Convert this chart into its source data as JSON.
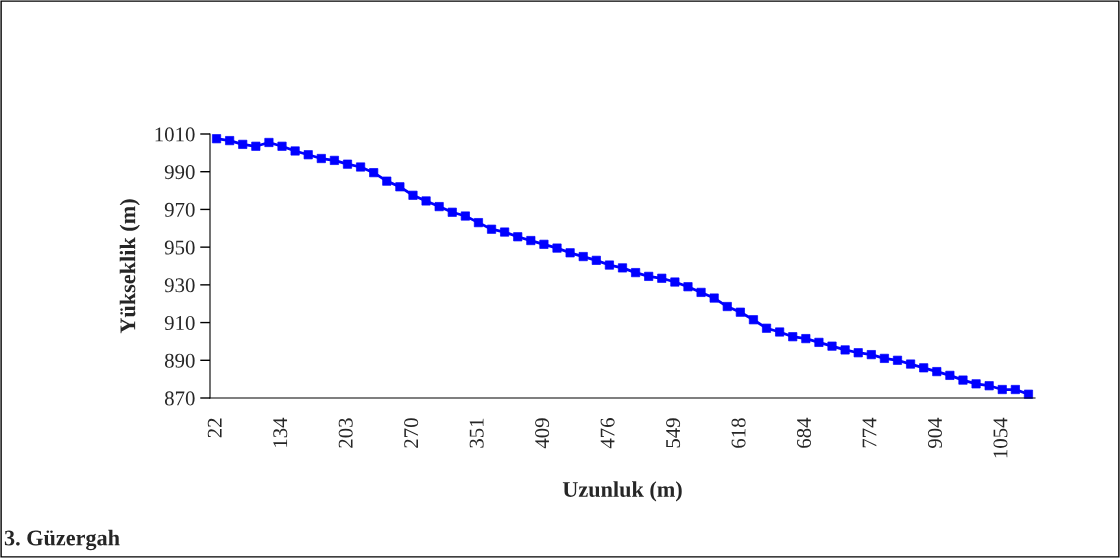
{
  "chart_data": {
    "type": "line",
    "xlabel": "Uzunluk (m)",
    "ylabel": "Yükseklik (m)",
    "annotations": [
      "3. Güzergah"
    ],
    "categories": [
      "22",
      null,
      null,
      null,
      null,
      "134",
      null,
      null,
      null,
      null,
      "203",
      null,
      null,
      null,
      null,
      "270",
      null,
      null,
      null,
      null,
      "351",
      null,
      null,
      null,
      null,
      "409",
      null,
      null,
      null,
      null,
      "476",
      null,
      null,
      null,
      null,
      "549",
      null,
      null,
      null,
      null,
      "618",
      null,
      null,
      null,
      null,
      "684",
      null,
      null,
      null,
      null,
      "774",
      null,
      null,
      null,
      null,
      "904",
      null,
      null,
      null,
      null,
      "1054",
      null,
      null
    ],
    "series": [
      {
        "color": "#0000ff",
        "values": [
          1007.5,
          1006.5,
          1004.5,
          1003.5,
          1005.5,
          1003.5,
          1001,
          999,
          997,
          996,
          994,
          992.5,
          989.5,
          985,
          982,
          977.5,
          974.5,
          971.5,
          968.5,
          966.5,
          963,
          959.5,
          958,
          955.5,
          953.5,
          951.5,
          949.5,
          947,
          945,
          943,
          940.5,
          939,
          936.5,
          934.5,
          933.5,
          931.5,
          929,
          926,
          923,
          918.5,
          915.5,
          911.5,
          907,
          905,
          902.5,
          901.5,
          899.5,
          897.5,
          895.5,
          894,
          893,
          891,
          890,
          888,
          886,
          884,
          882,
          879.5,
          877.5,
          876.5,
          874.5,
          874.5,
          872
        ]
      }
    ],
    "ylim": [
      870,
      1010
    ],
    "yticks": [
      870,
      890,
      910,
      930,
      950,
      970,
      990,
      1010
    ],
    "grid": false,
    "legend": false,
    "marker": "square",
    "line_style": "solid"
  }
}
